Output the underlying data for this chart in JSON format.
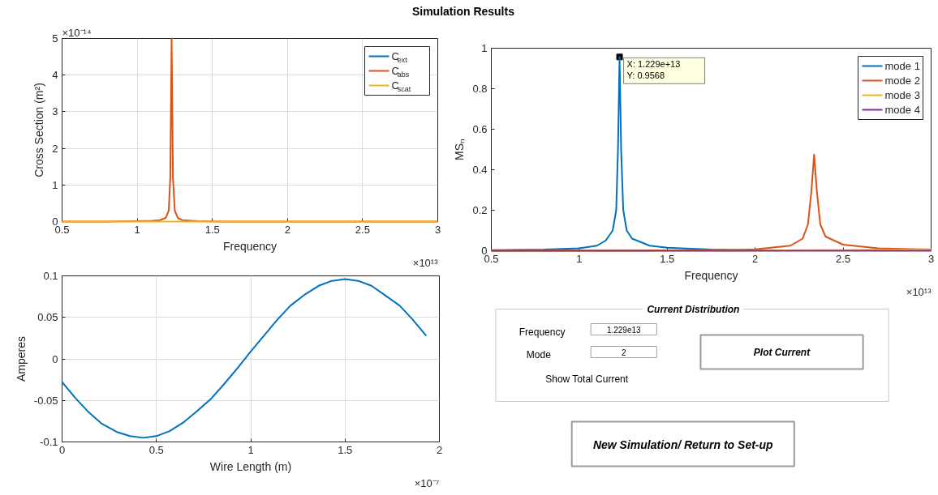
{
  "chart_data": [
    {
      "type": "other",
      "title": "Simulation Results"
    },
    {
      "type": "line",
      "xlabel": "Frequency",
      "ylabel": "Cross Section (m²)",
      "xlim": [
        0.5,
        3
      ],
      "ylim": [
        0,
        5
      ],
      "xticks": [
        0.5,
        1,
        1.5,
        2,
        2.5,
        3
      ],
      "yticks": [
        0,
        1,
        2,
        3,
        4,
        5
      ],
      "grid": true,
      "legend": "top right",
      "annotations": [
        "×10⁻¹⁴",
        "×10¹³"
      ],
      "x": [
        0.5,
        0.8,
        1.0,
        1.1,
        1.15,
        1.19,
        1.21,
        1.22,
        1.229,
        1.238,
        1.25,
        1.27,
        1.3,
        1.4,
        1.6,
        2.0,
        2.5,
        3.0
      ],
      "series": [
        {
          "name": "C$_{ext}$",
          "color": "#0072bd",
          "values": [
            null,
            null,
            null,
            null,
            null,
            null,
            null,
            null,
            null,
            null,
            null,
            null,
            null,
            null,
            null,
            null,
            null,
            null
          ]
        },
        {
          "name": "C$_{abs}$",
          "color": "#d95319",
          "values": [
            0,
            0,
            0.01,
            0.02,
            0.04,
            0.1,
            0.3,
            1.2,
            5,
            1.2,
            0.3,
            0.1,
            0.04,
            0.01,
            0,
            0,
            0,
            0
          ]
        },
        {
          "name": "C$_{scat}$",
          "color": "#edb120",
          "values": [
            0,
            0,
            0,
            0,
            0,
            0,
            0,
            0,
            0,
            0,
            0,
            0,
            0,
            0,
            0,
            0,
            0,
            0
          ]
        }
      ]
    },
    {
      "type": "line",
      "xlabel": "Wire Length (m)",
      "ylabel": "Amperes",
      "xlim": [
        0,
        2
      ],
      "ylim": [
        -0.1,
        0.1
      ],
      "xticks": [
        0,
        0.5,
        1,
        1.5,
        2
      ],
      "yticks": [
        -0.1,
        -0.05,
        0,
        0.05,
        0.1
      ],
      "grid": true,
      "annotations": [
        "×10⁻⁷"
      ],
      "x": [
        0,
        0.07,
        0.14,
        0.21,
        0.29,
        0.36,
        0.43,
        0.5,
        0.57,
        0.64,
        0.71,
        0.79,
        0.86,
        0.93,
        1.0,
        1.07,
        1.14,
        1.21,
        1.29,
        1.36,
        1.43,
        1.5,
        1.57,
        1.64,
        1.71,
        1.79,
        1.86,
        1.93
      ],
      "series": [
        {
          "color": "#0072bd",
          "values": [
            -0.028,
            -0.047,
            -0.064,
            -0.078,
            -0.088,
            -0.093,
            -0.095,
            -0.093,
            -0.087,
            -0.077,
            -0.064,
            -0.048,
            -0.03,
            -0.011,
            0.009,
            0.028,
            0.047,
            0.064,
            0.078,
            0.088,
            0.094,
            0.096,
            0.094,
            0.088,
            0.077,
            0.064,
            0.047,
            0.028
          ]
        }
      ]
    },
    {
      "type": "line",
      "xlabel": "Frequency",
      "ylabel": "MSₙ",
      "xlim": [
        0.5,
        3
      ],
      "ylim": [
        0,
        1
      ],
      "xticks": [
        0.5,
        1,
        1.5,
        2,
        2.5,
        3
      ],
      "yticks": [
        0,
        0.2,
        0.4,
        0.6,
        0.8,
        1
      ],
      "grid": false,
      "legend": "top right",
      "annotations": [
        "×10¹³",
        {
          "text": "X: 1.229e+13\nY: 0.9568",
          "x": 1.229,
          "y": 0.9568
        }
      ],
      "series": [
        {
          "name": "mode 1",
          "color": "#0072bd",
          "x": [
            0.5,
            0.8,
            1.0,
            1.1,
            1.15,
            1.19,
            1.21,
            1.22,
            1.229,
            1.238,
            1.25,
            1.27,
            1.3,
            1.4,
            1.5,
            1.75,
            2.0
          ],
          "values": [
            0.003,
            0.006,
            0.012,
            0.025,
            0.05,
            0.1,
            0.2,
            0.5,
            0.9568,
            0.5,
            0.2,
            0.1,
            0.06,
            0.025,
            0.015,
            0.006,
            0.003
          ]
        },
        {
          "name": "mode 2",
          "color": "#d95319",
          "x": [
            0.5,
            1.5,
            1.9,
            2.0,
            2.2,
            2.27,
            2.3,
            2.32,
            2.335,
            2.35,
            2.37,
            2.4,
            2.5,
            2.7,
            3.0
          ],
          "values": [
            0,
            0.002,
            0.004,
            0.007,
            0.025,
            0.06,
            0.13,
            0.3,
            0.475,
            0.3,
            0.13,
            0.07,
            0.03,
            0.012,
            0.006
          ]
        },
        {
          "name": "mode 3",
          "color": "#edb120",
          "x": [
            0.5,
            2.0,
            2.5,
            3.0
          ],
          "values": [
            0,
            0.001,
            0.003,
            0.007
          ]
        },
        {
          "name": "mode 4",
          "color": "#7e2f8e",
          "x": [
            0.5,
            3.0
          ],
          "values": [
            0,
            0
          ]
        }
      ]
    },
    {
      "type": "other",
      "title": "Current Distribution",
      "annotations": [
        "Frequency",
        "1.229e13",
        "Mode",
        "2",
        "Show Total Current",
        "Plot Current",
        "New Simulation/ Return to Set-up"
      ]
    }
  ]
}
